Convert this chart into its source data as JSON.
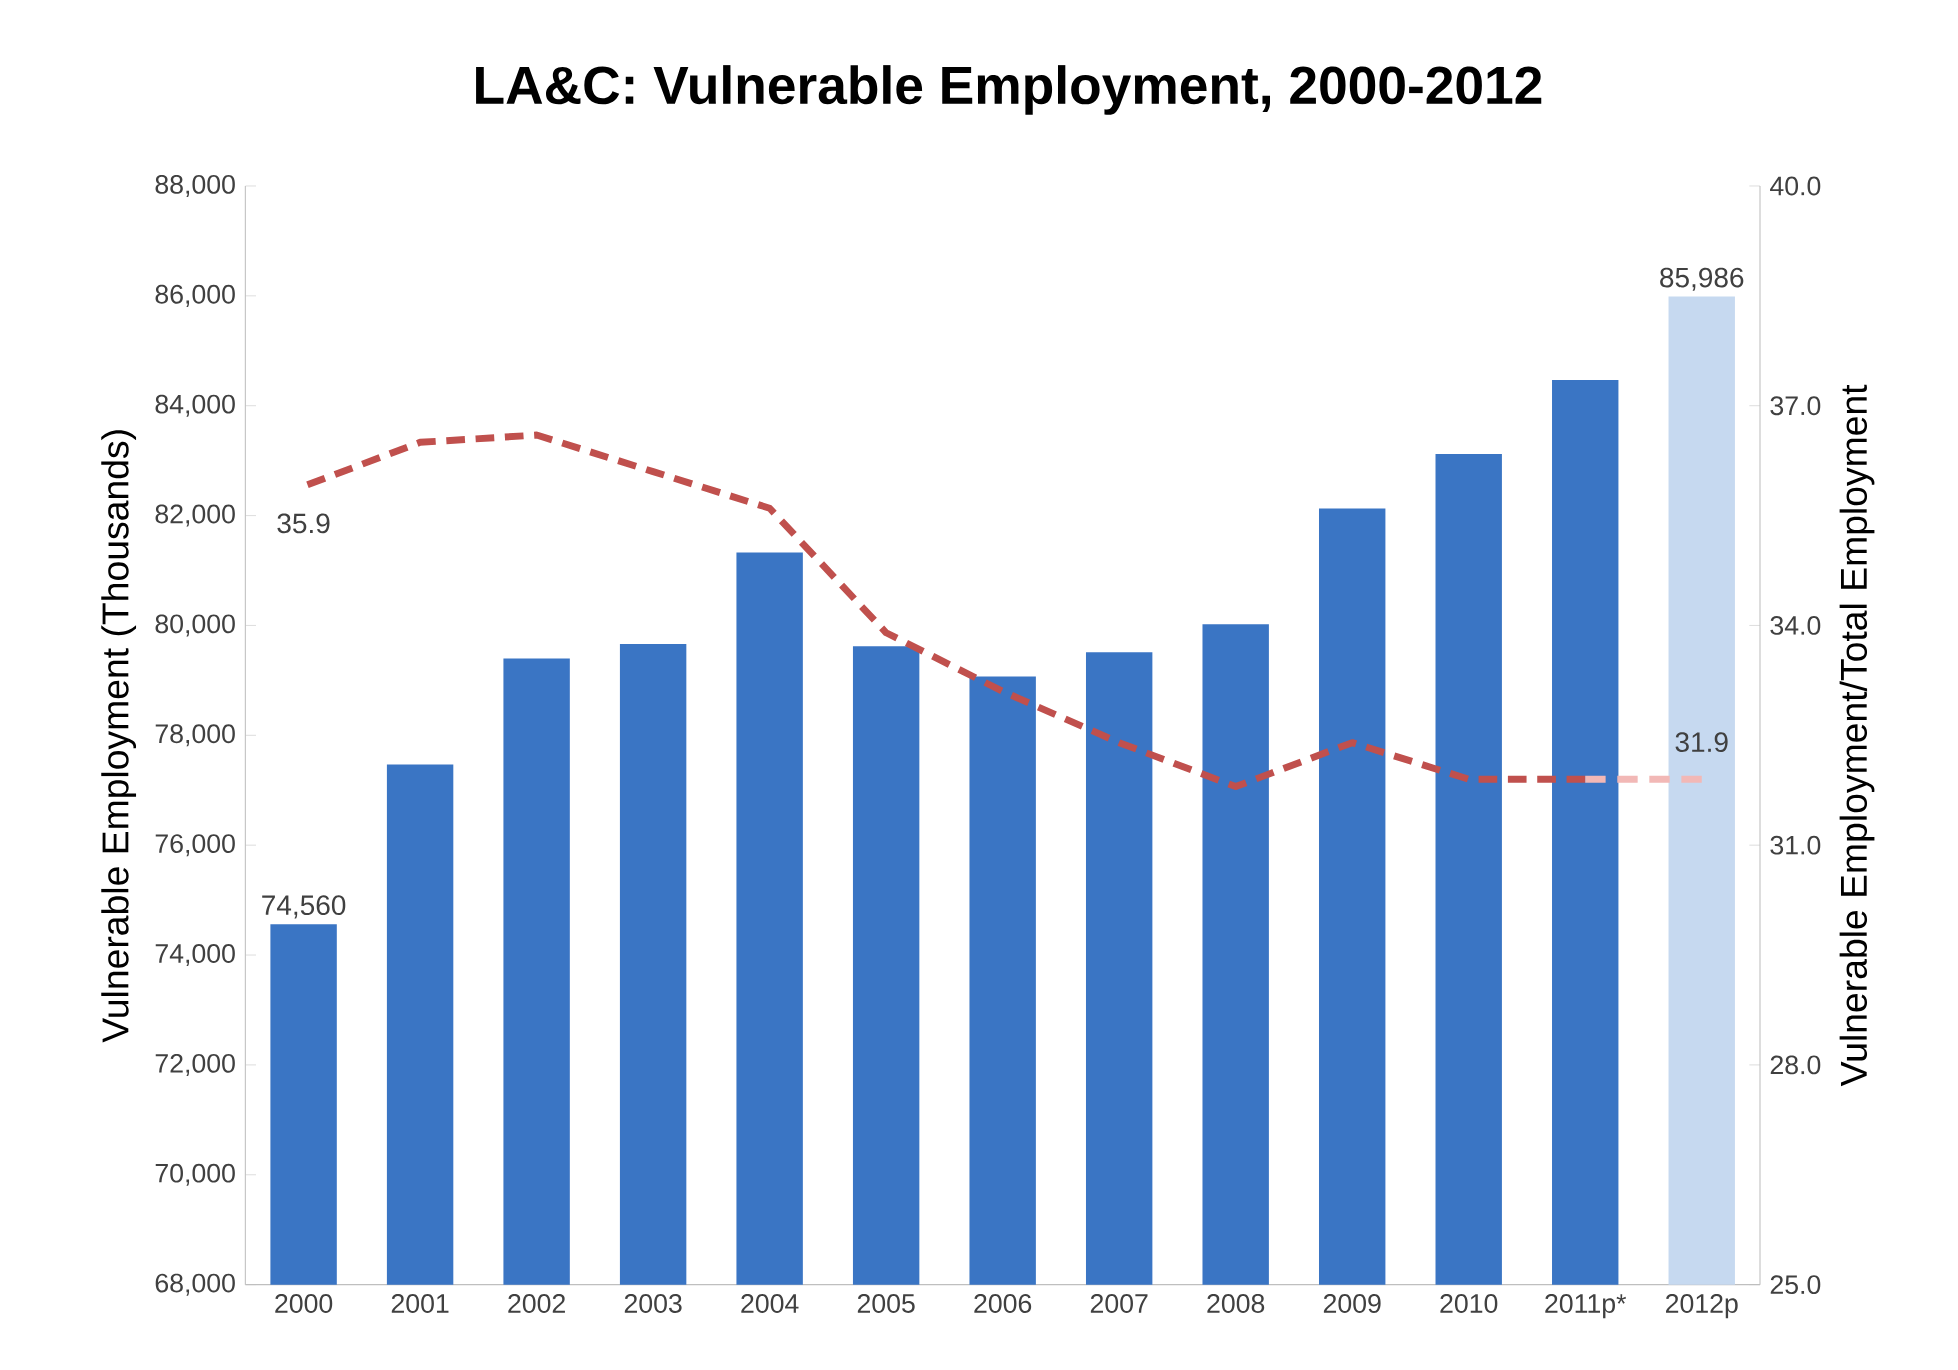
{
  "chart_data": {
    "type": "bar",
    "title": "LA&C: Vulnerable Employment, 2000-2012",
    "ylabel": "Vulnerable Employment (Thousands)",
    "y2label": "Vulnerable Employment/Total Employment",
    "categories": [
      "2000",
      "2001",
      "2002",
      "2003",
      "2004",
      "2005",
      "2006",
      "2007",
      "2008",
      "2009",
      "2010",
      "2011p*",
      "2012p"
    ],
    "ylim": [
      68000,
      88000
    ],
    "yticks": [
      {
        "value": 68000,
        "label": "68,000"
      },
      {
        "value": 70000,
        "label": "70,000"
      },
      {
        "value": 72000,
        "label": "72,000"
      },
      {
        "value": 74000,
        "label": "74,000"
      },
      {
        "value": 76000,
        "label": "76,000"
      },
      {
        "value": 78000,
        "label": "78,000"
      },
      {
        "value": 80000,
        "label": "80,000"
      },
      {
        "value": 82000,
        "label": "82,000"
      },
      {
        "value": 84000,
        "label": "84,000"
      },
      {
        "value": 86000,
        "label": "86,000"
      },
      {
        "value": 88000,
        "label": "88,000"
      }
    ],
    "y2lim": [
      25,
      40
    ],
    "y2ticks": [
      {
        "value": 25,
        "label": "25.0"
      },
      {
        "value": 28,
        "label": "28.0"
      },
      {
        "value": 31,
        "label": "31.0"
      },
      {
        "value": 34,
        "label": "34.0"
      },
      {
        "value": 37,
        "label": "37.0"
      },
      {
        "value": 40,
        "label": "40.0"
      }
    ],
    "series": [
      {
        "colors": [
          "#3a75c4",
          "#3a75c4",
          "#3a75c4",
          "#3a75c4",
          "#3a75c4",
          "#3a75c4",
          "#3a75c4",
          "#3a75c4",
          "#3a75c4",
          "#3a75c4",
          "#3a75c4",
          "#3a75c4",
          "#c6d9f0"
        ],
        "values": [
          74560,
          77470,
          79400,
          79660,
          81330,
          79620,
          79070,
          79510,
          80020,
          82130,
          83120,
          84470,
          85986
        ],
        "value_labels": [
          "74,560",
          null,
          null,
          null,
          null,
          null,
          null,
          null,
          null,
          null,
          null,
          null,
          "85,986"
        ]
      },
      {
        "type": "line",
        "axis": "y2",
        "color": "#c0504d",
        "line_style": "dashed",
        "values": [
          35.9,
          36.5,
          36.6,
          36.1,
          35.6,
          33.9,
          33.1,
          32.4,
          31.8,
          32.4,
          31.9,
          31.9,
          null
        ],
        "value_labels": [
          "35.9",
          null,
          null,
          null,
          null,
          null,
          null,
          null,
          null,
          null,
          null,
          null,
          null
        ]
      },
      {
        "type": "line",
        "axis": "y2",
        "color": "#f2b8b6",
        "line_style": "dashed",
        "values": [
          null,
          null,
          null,
          null,
          null,
          null,
          null,
          null,
          null,
          null,
          null,
          31.9,
          31.9
        ],
        "value_labels": [
          null,
          null,
          null,
          null,
          null,
          null,
          null,
          null,
          null,
          null,
          null,
          null,
          "31.9"
        ]
      }
    ]
  }
}
